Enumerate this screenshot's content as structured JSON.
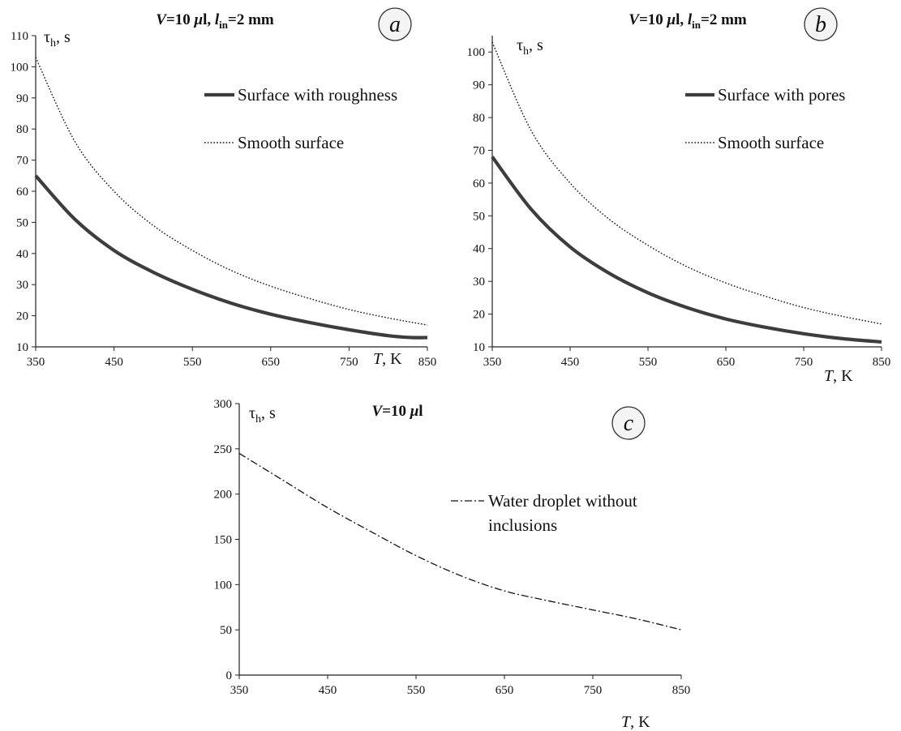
{
  "chart_data": [
    {
      "id": "a",
      "type": "line",
      "panel_label": "a",
      "title": {
        "v": "V",
        "rest1": "=10 ",
        "mu": "μ",
        "rest2": "l, ",
        "l": "l",
        "sub": "in",
        "rest3": "=2 mm"
      },
      "ylabel": {
        "tau": "τ",
        "sub": "h",
        "unit": ", s"
      },
      "xlabel": {
        "var": "T",
        "unit": ", K"
      },
      "xlim": [
        350,
        850
      ],
      "ylim": [
        10,
        110
      ],
      "xticks": [
        350,
        450,
        550,
        650,
        750,
        850
      ],
      "yticks": [
        10,
        20,
        30,
        40,
        50,
        60,
        70,
        80,
        90,
        100,
        110
      ],
      "legend_position": "top-right",
      "series": [
        {
          "name": "Surface with roughness",
          "style": "solid",
          "x": [
            350,
            400,
            450,
            500,
            550,
            600,
            650,
            700,
            750,
            800,
            830,
            850
          ],
          "y": [
            65,
            51,
            41,
            34,
            28.5,
            24,
            20.5,
            17.8,
            15.5,
            13.6,
            13,
            13
          ]
        },
        {
          "name": "Smooth surface",
          "style": "dotted",
          "x": [
            350,
            400,
            450,
            500,
            550,
            600,
            650,
            700,
            750,
            800,
            850
          ],
          "y": [
            103,
            76,
            60,
            49,
            41,
            34.5,
            29.5,
            25.5,
            22,
            19.3,
            17
          ]
        }
      ]
    },
    {
      "id": "b",
      "type": "line",
      "panel_label": "b",
      "title": {
        "v": "V",
        "rest1": "=10 ",
        "mu": "μ",
        "rest2": "l, ",
        "l": "l",
        "sub": "in",
        "rest3": "=2 mm"
      },
      "ylabel": {
        "tau": "τ",
        "sub": "h",
        "unit": ", s"
      },
      "xlabel": {
        "var": "T",
        "unit": ", K"
      },
      "xlim": [
        350,
        850
      ],
      "ylim": [
        10,
        105
      ],
      "xticks": [
        350,
        450,
        550,
        650,
        750,
        850
      ],
      "yticks": [
        10,
        20,
        30,
        40,
        50,
        60,
        70,
        80,
        90,
        100
      ],
      "legend_position": "top-right",
      "series": [
        {
          "name": "Surface with pores",
          "style": "solid",
          "x": [
            350,
            400,
            450,
            500,
            550,
            600,
            650,
            700,
            750,
            800,
            850
          ],
          "y": [
            68,
            52,
            40.5,
            32.5,
            26.5,
            22,
            18.5,
            16,
            14,
            12.5,
            11.5
          ]
        },
        {
          "name": "Smooth surface",
          "style": "dotted",
          "x": [
            350,
            400,
            450,
            500,
            550,
            600,
            650,
            700,
            750,
            800,
            850
          ],
          "y": [
            103,
            76,
            60,
            49,
            41,
            34.5,
            29.5,
            25.5,
            22,
            19.3,
            17
          ]
        }
      ]
    },
    {
      "id": "c",
      "type": "line",
      "panel_label": "c",
      "title": {
        "v": "V",
        "rest1": "=10 ",
        "mu": "μ",
        "rest2": "l"
      },
      "ylabel": {
        "tau": "τ",
        "sub": "h",
        "unit": ", s"
      },
      "xlabel": {
        "var": "T",
        "unit": ", K"
      },
      "xlim": [
        350,
        850
      ],
      "ylim": [
        0,
        300
      ],
      "xticks": [
        350,
        450,
        550,
        650,
        750,
        850
      ],
      "yticks": [
        0,
        50,
        100,
        150,
        200,
        250,
        300
      ],
      "legend_position": "right",
      "series": [
        {
          "name_lines": [
            "Water droplet without",
            "inclusions"
          ],
          "style": "dashdot",
          "x": [
            350,
            400,
            450,
            500,
            550,
            600,
            650,
            700,
            750,
            800,
            850
          ],
          "y": [
            245,
            215,
            185,
            158,
            132,
            110,
            93,
            82,
            72,
            62,
            50
          ]
        }
      ]
    }
  ]
}
